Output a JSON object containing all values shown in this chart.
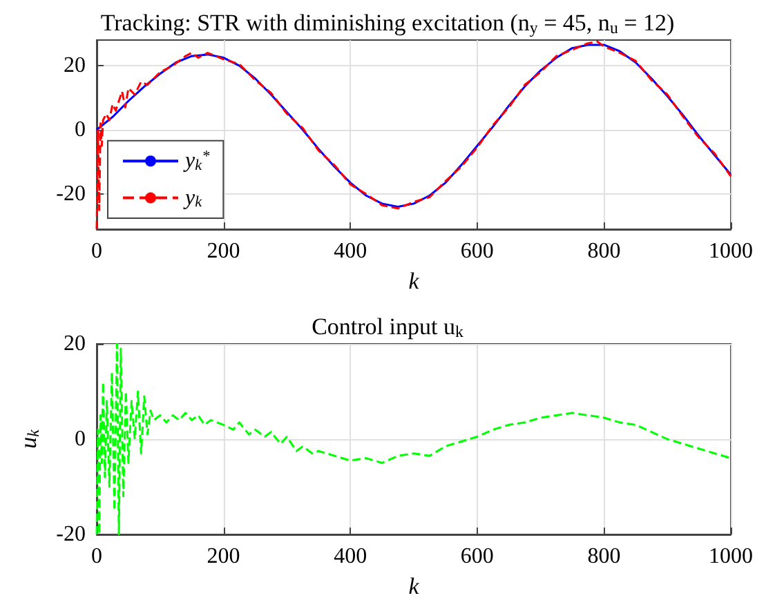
{
  "chart_data": [
    {
      "type": "line",
      "title": "Tracking: STR with diminishing excitation (n$_{y}$ = 45, n$_{u}$ = 12)",
      "xlabel": "k",
      "xlim": [
        0,
        1000
      ],
      "xticks": [
        0,
        200,
        400,
        600,
        800,
        1000
      ],
      "ylim": [
        -31,
        28
      ],
      "yticks": [
        -20,
        0,
        20
      ],
      "grid": true,
      "legend": "bottom left",
      "series": [
        {
          "name": "y$_{k}$$^{*}$",
          "color": "#0000ff",
          "line_style": "solid",
          "x": [
            0,
            25,
            50,
            75,
            100,
            125,
            150,
            175,
            200,
            225,
            250,
            275,
            300,
            325,
            350,
            375,
            400,
            425,
            450,
            475,
            500,
            525,
            550,
            575,
            600,
            625,
            650,
            675,
            700,
            725,
            750,
            775,
            800,
            825,
            850,
            875,
            900,
            925,
            950,
            975,
            1000
          ],
          "values": [
            0,
            4,
            9,
            13.5,
            17.5,
            21,
            23,
            23.5,
            22.5,
            20,
            16,
            11,
            5.5,
            0,
            -6,
            -11.5,
            -16.5,
            -20.5,
            -23,
            -24,
            -23,
            -20.5,
            -16.5,
            -11,
            -5,
            1,
            7.5,
            13.5,
            18.5,
            22.5,
            25.5,
            26.5,
            26.5,
            24.5,
            21,
            16,
            10.5,
            4.5,
            -2,
            -8,
            -14
          ]
        },
        {
          "name": "y$_{k}$",
          "color": "#ff0000",
          "line_style": "dashed",
          "x": [
            0,
            2,
            4,
            6,
            8,
            10,
            15,
            20,
            25,
            30,
            40,
            45,
            50,
            60,
            70,
            80,
            100,
            120,
            140,
            150,
            160,
            175,
            200,
            225,
            250,
            275,
            300,
            325,
            350,
            375,
            400,
            425,
            450,
            475,
            500,
            525,
            550,
            575,
            600,
            625,
            650,
            675,
            700,
            725,
            750,
            775,
            790,
            800,
            825,
            850,
            875,
            900,
            925,
            950,
            975,
            1000
          ],
          "values": [
            -31,
            0,
            -25,
            2,
            -5,
            3,
            5,
            3,
            8,
            6,
            12,
            7,
            13,
            11,
            15,
            14,
            18,
            20,
            23,
            24,
            22.5,
            24,
            22,
            20.5,
            15.5,
            11.5,
            5,
            0.5,
            -6.5,
            -11,
            -17,
            -20,
            -23.5,
            -24.5,
            -22.5,
            -21,
            -16,
            -11.5,
            -5.5,
            1.5,
            7,
            14,
            18,
            23,
            25,
            27,
            27.5,
            26,
            24,
            21.5,
            15.5,
            11,
            4,
            -2.5,
            -7.5,
            -14.5
          ]
        }
      ]
    },
    {
      "type": "line",
      "title": "Control input u$_{k}$",
      "xlabel": "k",
      "ylabel": "u$_{k}$",
      "xlim": [
        0,
        1000
      ],
      "xticks": [
        0,
        200,
        400,
        600,
        800,
        1000
      ],
      "ylim": [
        -20,
        20
      ],
      "yticks": [
        -20,
        0,
        20
      ],
      "grid": true,
      "series": [
        {
          "color": "#00ff00",
          "line_style": "dashed",
          "x": [
            0,
            2,
            4,
            6,
            8,
            10,
            13,
            16,
            20,
            24,
            28,
            32,
            35,
            38,
            42,
            46,
            50,
            55,
            60,
            65,
            70,
            75,
            80,
            85,
            90,
            100,
            110,
            120,
            130,
            140,
            150,
            160,
            170,
            180,
            200,
            215,
            225,
            240,
            250,
            265,
            275,
            290,
            300,
            315,
            325,
            340,
            350,
            375,
            400,
            425,
            450,
            475,
            500,
            525,
            550,
            575,
            600,
            625,
            650,
            675,
            700,
            725,
            750,
            775,
            800,
            825,
            850,
            875,
            900,
            925,
            950,
            975,
            1000
          ],
          "values": [
            -20,
            2,
            -20,
            5,
            -5,
            12,
            -8,
            8,
            -10,
            14,
            -15,
            20,
            -20,
            19,
            -12,
            10,
            -5,
            8,
            0,
            10,
            -3,
            9,
            1,
            6,
            4,
            5,
            3.5,
            5,
            4,
            5.5,
            4,
            5,
            3,
            4,
            3,
            2,
            3.5,
            1,
            2,
            0.5,
            1.5,
            -1,
            0.5,
            -2.5,
            -1.5,
            -3,
            -2.5,
            -3.5,
            -4.5,
            -4,
            -5,
            -3.5,
            -3,
            -3.5,
            -1.5,
            -0.5,
            0.5,
            2,
            3,
            3.5,
            4.5,
            5,
            5.5,
            5,
            4.5,
            3.5,
            3,
            1.5,
            0,
            -1,
            -2,
            -3,
            -4
          ]
        }
      ]
    }
  ]
}
